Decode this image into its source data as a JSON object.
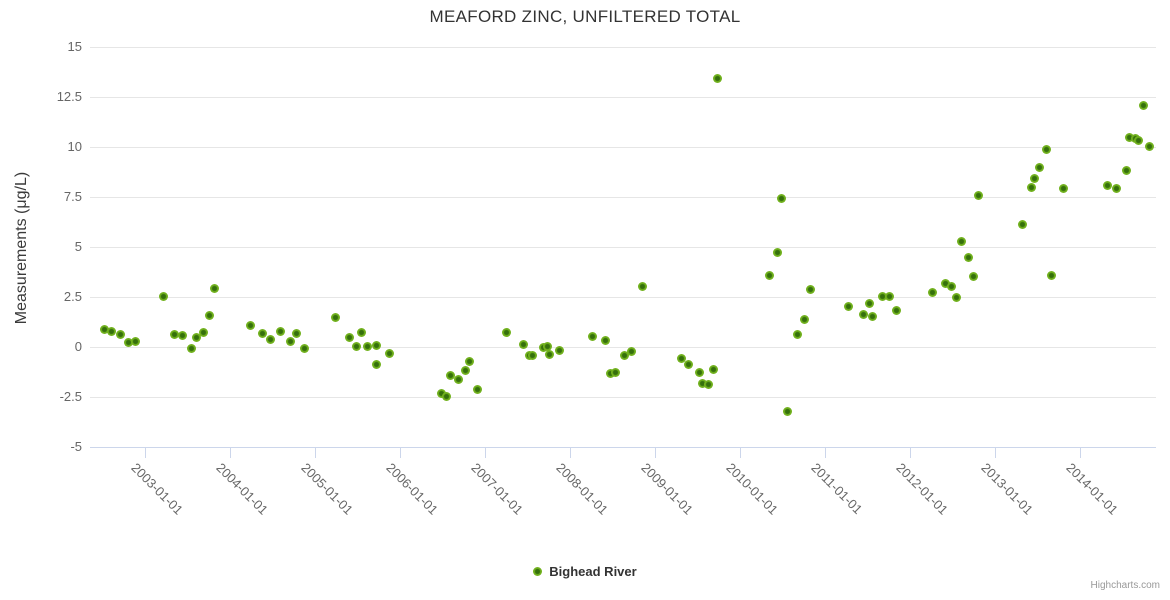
{
  "title": "MEAFORD ZINC, UNFILTERED TOTAL",
  "legend": {
    "series_label": "Bighead River"
  },
  "credits": "Highcharts.com",
  "colors": {
    "marker_outer": "#72b21e",
    "marker_inner": "#35700c",
    "gridline": "#e6e6e6",
    "axis_line": "#ccd6eb",
    "tick_label": "#666666",
    "title_text": "#333333",
    "background": "#ffffff"
  },
  "chart_data": {
    "type": "scatter",
    "title": "MEAFORD ZINC, UNFILTERED TOTAL",
    "xlabel": "",
    "ylabel": "Measurements (μg/L)",
    "grid": "horizontal",
    "legend_position": "bottom-center",
    "ylim": [
      -5,
      15
    ],
    "xlim": [
      2002.35,
      2014.89
    ],
    "y_ticks": [
      15,
      12.5,
      10,
      7.5,
      5,
      2.5,
      0,
      -2.5,
      -5
    ],
    "y_tick_labels": [
      "15",
      "12.5",
      "10",
      "7.5",
      "5",
      "2.5",
      "0",
      "-2.5",
      "-5"
    ],
    "x_ticks": [
      2003,
      2004,
      2005,
      2006,
      2007,
      2008,
      2009,
      2010,
      2011,
      2012,
      2013,
      2014
    ],
    "x_tick_labels": [
      "2003-01-01",
      "2004-01-01",
      "2005-01-01",
      "2006-01-01",
      "2007-01-01",
      "2008-01-01",
      "2009-01-01",
      "2010-01-01",
      "2011-01-01",
      "2012-01-01",
      "2013-01-01",
      "2014-01-01"
    ],
    "series": [
      {
        "name": "Bighead River",
        "points": [
          [
            2002.52,
            0.9
          ],
          [
            2002.6,
            0.8
          ],
          [
            2002.71,
            0.65
          ],
          [
            2002.8,
            0.25
          ],
          [
            2002.88,
            0.3
          ],
          [
            2003.22,
            2.55
          ],
          [
            2003.34,
            0.65
          ],
          [
            2003.44,
            0.6
          ],
          [
            2003.54,
            -0.05
          ],
          [
            2003.6,
            0.5
          ],
          [
            2003.69,
            0.75
          ],
          [
            2003.76,
            1.6
          ],
          [
            2003.82,
            2.95
          ],
          [
            2004.24,
            1.1
          ],
          [
            2004.38,
            0.7
          ],
          [
            2004.47,
            0.4
          ],
          [
            2004.59,
            0.8
          ],
          [
            2004.71,
            0.3
          ],
          [
            2004.78,
            0.7
          ],
          [
            2004.87,
            -0.05
          ],
          [
            2005.24,
            1.5
          ],
          [
            2005.4,
            0.5
          ],
          [
            2005.48,
            0.05
          ],
          [
            2005.54,
            0.75
          ],
          [
            2005.62,
            0.05
          ],
          [
            2005.72,
            0.1
          ],
          [
            2005.72,
            -0.85
          ],
          [
            2005.87,
            -0.3
          ],
          [
            2006.48,
            -2.3
          ],
          [
            2006.54,
            -2.45
          ],
          [
            2006.59,
            -1.4
          ],
          [
            2006.69,
            -1.6
          ],
          [
            2006.77,
            -1.15
          ],
          [
            2006.82,
            -0.7
          ],
          [
            2006.91,
            -2.1
          ],
          [
            2007.25,
            0.75
          ],
          [
            2007.45,
            0.15
          ],
          [
            2007.52,
            -0.4
          ],
          [
            2007.56,
            -0.4
          ],
          [
            2007.69,
            0.0
          ],
          [
            2007.73,
            0.05
          ],
          [
            2007.75,
            -0.35
          ],
          [
            2007.87,
            -0.15
          ],
          [
            2008.26,
            0.55
          ],
          [
            2008.41,
            0.35
          ],
          [
            2008.47,
            -1.3
          ],
          [
            2008.53,
            -1.25
          ],
          [
            2008.64,
            -0.4
          ],
          [
            2008.72,
            -0.2
          ],
          [
            2008.85,
            3.05
          ],
          [
            2009.31,
            -0.55
          ],
          [
            2009.39,
            -0.85
          ],
          [
            2009.52,
            -1.25
          ],
          [
            2009.56,
            -1.8
          ],
          [
            2009.62,
            -1.85
          ],
          [
            2009.68,
            -1.1
          ],
          [
            2009.73,
            13.45
          ],
          [
            2010.34,
            3.6
          ],
          [
            2010.44,
            4.75
          ],
          [
            2010.48,
            7.45
          ],
          [
            2010.56,
            -3.2
          ],
          [
            2010.67,
            0.65
          ],
          [
            2010.75,
            1.4
          ],
          [
            2010.83,
            2.9
          ],
          [
            2011.27,
            2.05
          ],
          [
            2011.45,
            1.65
          ],
          [
            2011.52,
            2.2
          ],
          [
            2011.56,
            1.55
          ],
          [
            2011.67,
            2.55
          ],
          [
            2011.75,
            2.55
          ],
          [
            2011.84,
            1.85
          ],
          [
            2012.26,
            2.75
          ],
          [
            2012.41,
            3.2
          ],
          [
            2012.48,
            3.05
          ],
          [
            2012.54,
            2.5
          ],
          [
            2012.6,
            5.3
          ],
          [
            2012.68,
            4.5
          ],
          [
            2012.74,
            3.55
          ],
          [
            2012.8,
            7.6
          ],
          [
            2013.32,
            6.15
          ],
          [
            2013.42,
            8.0
          ],
          [
            2013.46,
            8.45
          ],
          [
            2013.52,
            9.0
          ],
          [
            2013.6,
            9.9
          ],
          [
            2013.66,
            3.6
          ],
          [
            2013.8,
            7.95
          ],
          [
            2014.32,
            8.1
          ],
          [
            2014.42,
            7.95
          ],
          [
            2014.54,
            8.85
          ],
          [
            2014.58,
            10.5
          ],
          [
            2014.65,
            10.45
          ],
          [
            2014.69,
            10.35
          ],
          [
            2014.74,
            12.1
          ],
          [
            2014.81,
            10.05
          ]
        ]
      }
    ]
  }
}
